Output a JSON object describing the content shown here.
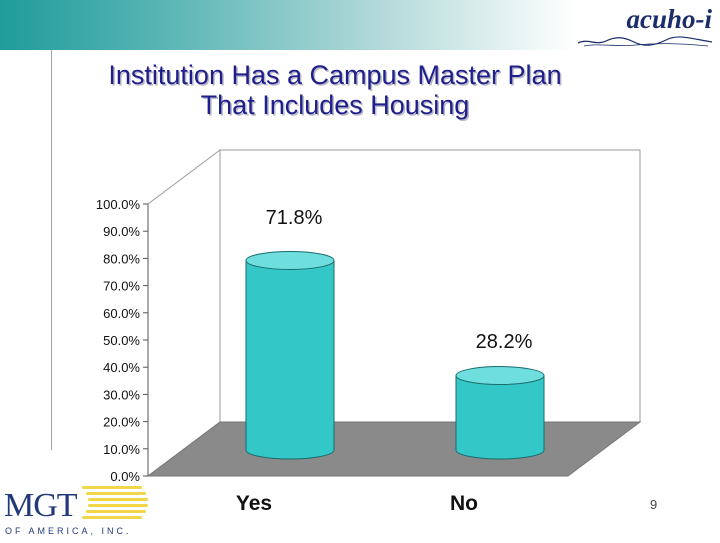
{
  "slide": {
    "page_number": "9"
  },
  "logos": {
    "top_right": "acuho-i",
    "bottom_left_main": "MGT",
    "bottom_left_sub": "OF AMERICA, INC."
  },
  "colors": {
    "title": "#1f1f8c",
    "bar_face": "#33c7c7",
    "bar_top": "#6fdede",
    "floor": "#8a8a8a",
    "band_start": "#1f9c9b"
  },
  "chart_data": {
    "type": "bar",
    "title_lines": [
      "Institution Has a Campus Master Plan",
      "That Includes Housing"
    ],
    "categories": [
      "Yes",
      "No"
    ],
    "values": [
      71.8,
      28.2
    ],
    "data_labels": [
      "71.8%",
      "28.2%"
    ],
    "ylim": [
      0,
      100
    ],
    "yticks": [
      "0.0%",
      "10.0%",
      "20.0%",
      "30.0%",
      "40.0%",
      "50.0%",
      "60.0%",
      "70.0%",
      "80.0%",
      "90.0%",
      "100.0%"
    ],
    "three_d": true,
    "grid": false,
    "legend": "none"
  }
}
